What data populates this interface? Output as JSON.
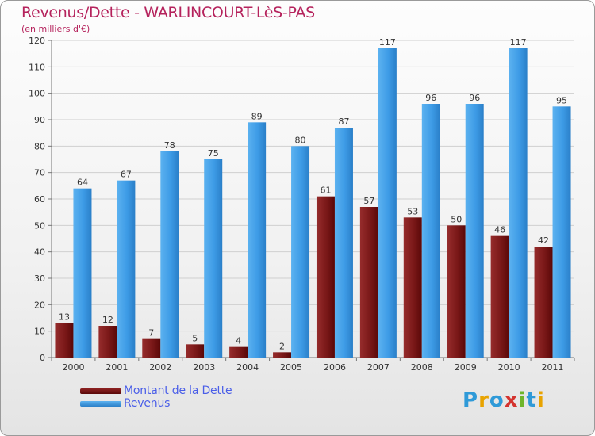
{
  "header": {
    "title": "Revenus/Dette - WARLINCOURT-LèS-PAS",
    "subtitle": "(en milliers d'€)"
  },
  "legend": {
    "items": [
      {
        "label": "Montant de la Dette",
        "color": "#7a1414"
      },
      {
        "label": "Revenus",
        "color": "#3d9be6"
      }
    ]
  },
  "logo": {
    "text": "Proxiti",
    "letters": [
      "P",
      "r",
      "o",
      "x",
      "i",
      "t",
      "i"
    ],
    "colors": [
      "#2f9ad8",
      "#e8a300",
      "#2f9ad8",
      "#d4342f",
      "#6fb52c",
      "#2f9ad8",
      "#e8a300"
    ]
  },
  "chart_data": {
    "type": "bar",
    "categories": [
      "2000",
      "2001",
      "2002",
      "2003",
      "2004",
      "2005",
      "2006",
      "2007",
      "2008",
      "2009",
      "2010",
      "2011"
    ],
    "series": [
      {
        "name": "Montant de la Dette",
        "color": "#7a1414",
        "values": [
          13,
          12,
          7,
          5,
          4,
          2,
          61,
          57,
          53,
          50,
          46,
          42
        ]
      },
      {
        "name": "Revenus",
        "color": "#3d9be6",
        "values": [
          64,
          67,
          78,
          75,
          89,
          80,
          87,
          117,
          96,
          96,
          117,
          95
        ]
      }
    ],
    "ylim": [
      0,
      120
    ],
    "yticks": [
      0,
      10,
      20,
      30,
      40,
      50,
      60,
      70,
      80,
      90,
      100,
      110,
      120
    ],
    "grid": true,
    "legend_position": "bottom-left"
  }
}
